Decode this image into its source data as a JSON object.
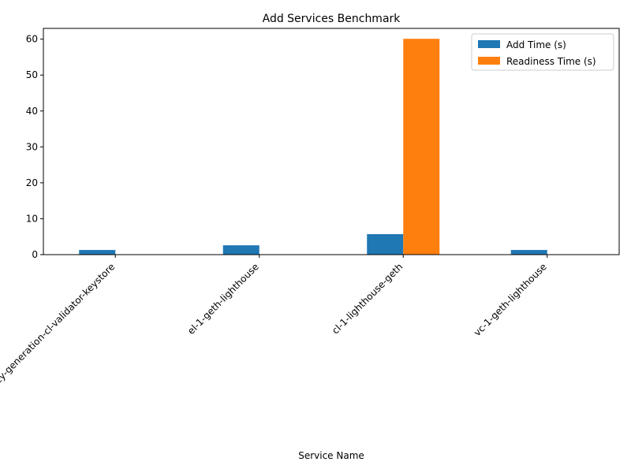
{
  "chart_data": {
    "type": "bar",
    "title": "Add Services Benchmark",
    "xlabel": "Service Name",
    "ylabel": "",
    "categories": [
      "validator-key-generation-cl-validator-keystore",
      "el-1-geth-lighthouse",
      "cl-1-lighthouse-geth",
      "vc-1-geth-lighthouse"
    ],
    "series": [
      {
        "name": "Add Time (s)",
        "color": "#1f77b4",
        "values": [
          1.3,
          2.6,
          5.7,
          1.3
        ]
      },
      {
        "name": "Readiness Time (s)",
        "color": "#ff7f0e",
        "values": [
          0,
          0,
          60.1,
          0
        ]
      }
    ],
    "ylim": [
      0,
      63
    ],
    "yticks": [
      0,
      10,
      20,
      30,
      40,
      50,
      60
    ],
    "legend": "top-right",
    "grid": false
  }
}
